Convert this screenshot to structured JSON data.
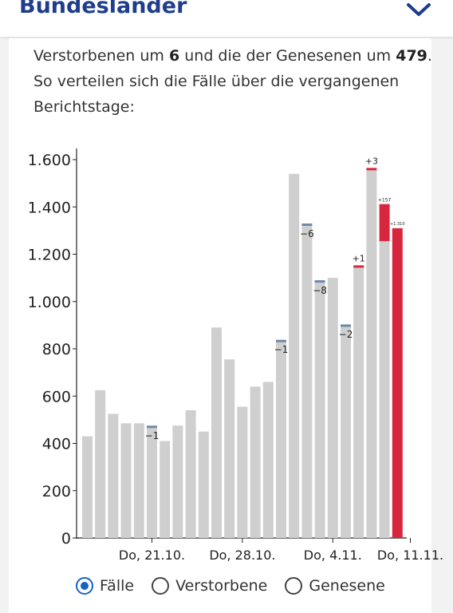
{
  "header": {
    "title": "Bundesländer",
    "icon": "chevron-down-icon"
  },
  "intro": {
    "line1_a": "Verstorbenen um ",
    "line1_b": "6",
    "line1_c": " und die der Genesenen um ",
    "line1_d": "479",
    "line1_e": ".",
    "line2": "So verteilen sich die Fälle über die vergangenen",
    "line3": "Berichtstage:"
  },
  "colors": {
    "bar": "#cfcfcf",
    "highlight": "#d7263d",
    "correction": "#6f8aa8",
    "axis": "#222222",
    "accent": "#1565c0"
  },
  "chart_data": {
    "type": "bar",
    "ylim": [
      0,
      1650
    ],
    "yticks": [
      0,
      200,
      400,
      600,
      800,
      1000,
      1200,
      1400,
      1600
    ],
    "ytick_labels": [
      "0",
      "200",
      "400",
      "600",
      "800",
      "1.000",
      "1.200",
      "1.400",
      "1.600"
    ],
    "xtick_labels": [
      "Do, 21.10.",
      "Do, 28.10.",
      "Do, 4.11.",
      "Do, 11.11."
    ],
    "xtick_index": [
      5,
      12,
      19,
      25
    ],
    "values": [
      430,
      625,
      525,
      485,
      485,
      465,
      410,
      475,
      540,
      450,
      890,
      755,
      555,
      640,
      660,
      830,
      1540,
      1320,
      1080,
      1100,
      895,
      1145,
      1555,
      1255,
      1310
    ],
    "corrections": [
      {
        "index": 5,
        "value": 10,
        "label": "−1",
        "color": "correction"
      },
      {
        "index": 15,
        "value": 8,
        "label": "−1",
        "color": "correction"
      },
      {
        "index": 17,
        "value": 10,
        "label": "−6",
        "color": "correction"
      },
      {
        "index": 18,
        "value": 10,
        "label": "−8",
        "color": "correction"
      },
      {
        "index": 20,
        "value": 8,
        "label": "−2",
        "color": "correction"
      },
      {
        "index": 21,
        "value": 8,
        "label": "+1",
        "color": "highlight"
      },
      {
        "index": 22,
        "value": 10,
        "label": "+3",
        "color": "highlight"
      },
      {
        "index": 23,
        "value": 157,
        "label": "+157",
        "color": "highlight"
      }
    ],
    "highlight_index": 24,
    "highlight_label": "+1.310"
  },
  "radios": [
    {
      "label": "Fälle",
      "checked": true
    },
    {
      "label": "Verstorbene",
      "checked": false
    },
    {
      "label": "Genesene",
      "checked": false
    }
  ]
}
